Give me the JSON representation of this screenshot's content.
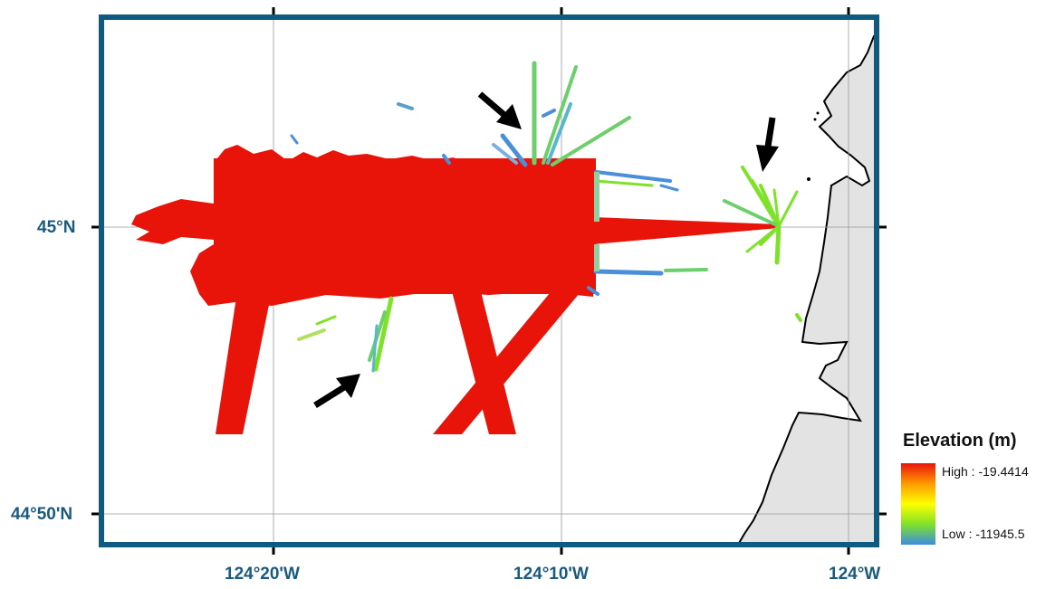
{
  "map": {
    "axes": {
      "x_ticks": [
        "124°20'W",
        "124°10'W",
        "124°W"
      ],
      "y_ticks": [
        "45°N",
        "44°50'N"
      ]
    },
    "colors": {
      "frame": "#0e5a80",
      "label": "#1a5a80",
      "land": "#e3e3e3",
      "survey_high": "#e8140a",
      "survey_low_green": "#7fe22a",
      "survey_low_blue": "#4a8fd8"
    }
  },
  "legend": {
    "title": "Elevation (m)",
    "high_label": "High : -19.4414",
    "low_label": "Low : -11945.5",
    "ramp_colors": [
      "#e8140a",
      "#ff9a00",
      "#ffff00",
      "#7fe22a",
      "#3c8be0"
    ]
  },
  "annotations": {
    "arrows": [
      "arrow-upper-center",
      "arrow-upper-right",
      "arrow-lower-left"
    ]
  }
}
